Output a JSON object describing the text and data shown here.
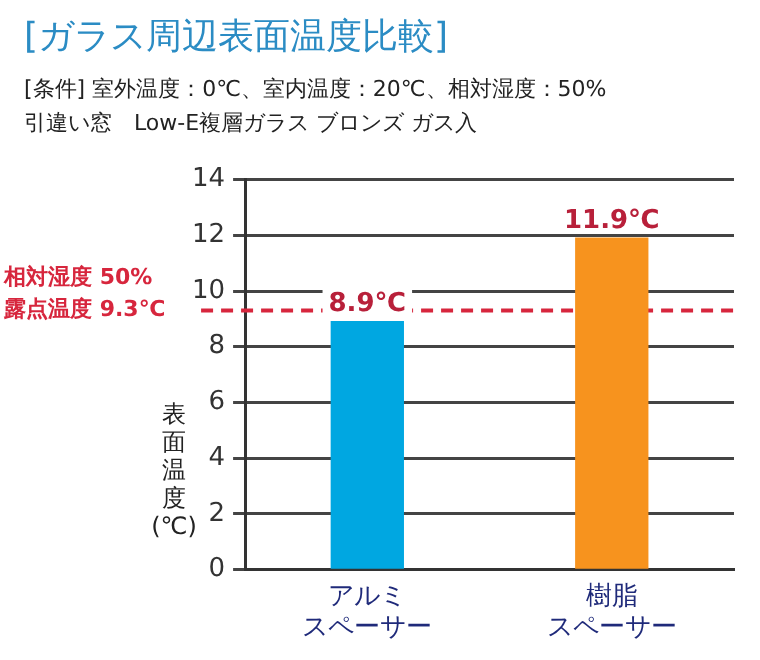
{
  "chart_data": {
    "type": "bar",
    "title": "[ガラス周辺表面温度比較]",
    "subtitle": "[条件] 室外温度：0℃、室内温度：20℃、相対湿度：50%\n引違い窓　Low-E複層ガラス ブロンズ ガス入",
    "ylabel": "表面温度(℃)",
    "categories": [
      "アルミスペーサー",
      "樹脂スペーサー"
    ],
    "values": [
      8.9,
      11.9
    ],
    "colors": [
      "#00a7e1",
      "#f7931e"
    ],
    "value_labels": [
      "8.9℃",
      "11.9℃"
    ],
    "ylim": [
      0,
      14
    ],
    "yticks": [
      0,
      2,
      4,
      6,
      8,
      10,
      12,
      14
    ],
    "grid": "y",
    "ref_lines": [
      {
        "axis": "y",
        "value": 9.3,
        "label": "相対湿度 50%\n露点温度 9.3℃",
        "color": "#d7263d",
        "line_style": "dashed"
      }
    ]
  }
}
